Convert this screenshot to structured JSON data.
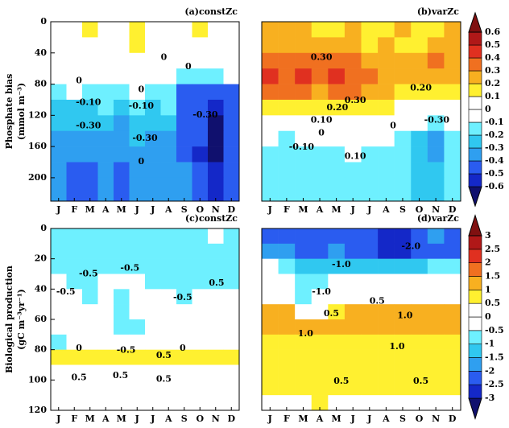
{
  "chart_data": [
    {
      "type": "heatmap",
      "title": "(a)constZc",
      "ylabel": "Phosphate bias",
      "ylabel_units": "(mmol m⁻³)",
      "categories": [
        "J",
        "F",
        "M",
        "A",
        "M",
        "J",
        "J",
        "A",
        "S",
        "O",
        "N",
        "D"
      ],
      "y_edges": [
        0,
        20,
        40,
        60,
        80,
        100,
        120,
        140,
        160,
        180,
        200,
        230
      ],
      "ylim": [
        0,
        230
      ],
      "y_inverted": true,
      "yticks": [
        0,
        40,
        80,
        120,
        160,
        200
      ],
      "values": [
        [
          0,
          0,
          0.15,
          0,
          0,
          0.15,
          0,
          0,
          0,
          0.15,
          0,
          0
        ],
        [
          0,
          0,
          0,
          0,
          0,
          0.15,
          0,
          0,
          0,
          0,
          0,
          0
        ],
        [
          0.05,
          0.05,
          0.05,
          0.05,
          0.05,
          0.05,
          0,
          0,
          0,
          0,
          0,
          0
        ],
        [
          0,
          0,
          0,
          0,
          0,
          0,
          0,
          0,
          -0.15,
          -0.15,
          -0.15,
          0
        ],
        [
          -0.15,
          -0.05,
          -0.15,
          -0.15,
          -0.15,
          -0.05,
          -0.15,
          -0.15,
          -0.45,
          -0.45,
          -0.45,
          -0.45
        ],
        [
          -0.25,
          -0.25,
          -0.25,
          -0.15,
          -0.25,
          -0.15,
          -0.25,
          -0.15,
          -0.45,
          -0.45,
          -0.55,
          -0.45
        ],
        [
          -0.25,
          -0.25,
          -0.25,
          -0.25,
          -0.35,
          -0.25,
          -0.25,
          -0.25,
          -0.45,
          -0.45,
          -0.65,
          -0.45
        ],
        [
          -0.35,
          -0.35,
          -0.35,
          -0.35,
          -0.35,
          -0.25,
          -0.35,
          -0.35,
          -0.45,
          -0.45,
          -0.65,
          -0.45
        ],
        [
          -0.35,
          -0.35,
          -0.35,
          -0.35,
          -0.35,
          -0.35,
          -0.35,
          -0.35,
          -0.45,
          -0.55,
          -0.65,
          -0.45
        ],
        [
          -0.35,
          -0.45,
          -0.45,
          -0.35,
          -0.45,
          -0.35,
          -0.35,
          -0.35,
          -0.35,
          -0.45,
          -0.55,
          -0.45
        ],
        [
          -0.35,
          -0.45,
          -0.45,
          -0.35,
          -0.45,
          -0.35,
          -0.35,
          -0.35,
          -0.35,
          -0.45,
          -0.55,
          -0.45
        ]
      ],
      "contour_labels": [
        "0",
        "0",
        "0",
        "0",
        "-0.10",
        "-0.10",
        "-0.30",
        "-0.30",
        "-0.30",
        "0"
      ]
    },
    {
      "type": "heatmap",
      "title": "(b)varZc",
      "categories": [
        "J",
        "F",
        "M",
        "A",
        "M",
        "J",
        "J",
        "A",
        "S",
        "O",
        "N",
        "D"
      ],
      "y_edges": [
        0,
        20,
        40,
        60,
        80,
        100,
        120,
        140,
        160,
        180,
        200,
        230
      ],
      "ylim": [
        0,
        230
      ],
      "y_inverted": true,
      "values": [
        [
          0.25,
          0.25,
          0.25,
          0.15,
          0.15,
          0.25,
          0.15,
          0.15,
          0.25,
          0.15,
          0.15,
          0.25
        ],
        [
          0.25,
          0.25,
          0.25,
          0.25,
          0.25,
          0.25,
          0.15,
          0.25,
          0.15,
          0.15,
          0.25,
          0.25
        ],
        [
          0.35,
          0.35,
          0.35,
          0.35,
          0.35,
          0.35,
          0.25,
          0.25,
          0.25,
          0.25,
          0.35,
          0.25
        ],
        [
          0.45,
          0.35,
          0.45,
          0.35,
          0.45,
          0.35,
          0.35,
          0.25,
          0.25,
          0.25,
          0.25,
          0.25
        ],
        [
          0.35,
          0.35,
          0.35,
          0.25,
          0.35,
          0.35,
          0.25,
          0.25,
          0.15,
          0.15,
          0.15,
          0.15
        ],
        [
          0.15,
          0.15,
          0.15,
          0.15,
          0.15,
          0.15,
          0.15,
          0.15,
          0.05,
          0.05,
          0.05,
          0.05
        ],
        [
          0.05,
          0.05,
          0.05,
          0.05,
          0.05,
          0.05,
          0.05,
          0.05,
          0.05,
          -0.05,
          -0.15,
          -0.05
        ],
        [
          -0.05,
          -0.15,
          -0.05,
          -0.05,
          -0.05,
          -0.05,
          -0.05,
          -0.05,
          -0.15,
          -0.25,
          -0.35,
          -0.15
        ],
        [
          -0.15,
          -0.15,
          -0.15,
          -0.15,
          -0.15,
          -0.05,
          -0.15,
          -0.15,
          -0.15,
          -0.25,
          -0.35,
          -0.15
        ],
        [
          -0.15,
          -0.15,
          -0.15,
          -0.15,
          -0.15,
          -0.15,
          -0.15,
          -0.15,
          -0.15,
          -0.25,
          -0.25,
          -0.15
        ],
        [
          -0.15,
          -0.15,
          -0.15,
          -0.15,
          -0.15,
          -0.15,
          -0.15,
          -0.15,
          -0.15,
          -0.25,
          -0.25,
          -0.15
        ]
      ],
      "contour_labels": [
        "0.30",
        "0.20",
        "0.20",
        "0.10",
        "0",
        "-0.10",
        "0.30",
        "0.10",
        "-0.30",
        "0"
      ],
      "colorbar": {
        "levels": [
          -0.6,
          -0.5,
          -0.4,
          -0.3,
          -0.2,
          -0.1,
          0,
          0.1,
          0.2,
          0.3,
          0.4,
          0.5,
          0.6
        ],
        "colors": [
          "#10106e",
          "#1428c8",
          "#2a5cf0",
          "#2f9ff0",
          "#30c8f0",
          "#6ef0ff",
          "#ffffff",
          "#ffffff",
          "#fff030",
          "#f8b020",
          "#f07020",
          "#e03020",
          "#b01818",
          "#801010"
        ]
      }
    },
    {
      "type": "heatmap",
      "title": "(c)constZc",
      "ylabel": "Biological production",
      "ylabel_units": "(gC m⁻³yr⁻¹)",
      "categories": [
        "J",
        "F",
        "M",
        "A",
        "M",
        "J",
        "J",
        "A",
        "S",
        "O",
        "N",
        "D"
      ],
      "y_edges": [
        0,
        10,
        20,
        30,
        40,
        50,
        60,
        70,
        80,
        90,
        100,
        110,
        120
      ],
      "ylim": [
        0,
        120
      ],
      "y_inverted": true,
      "yticks": [
        0,
        20,
        40,
        60,
        80,
        100,
        120
      ],
      "values": [
        [
          -0.75,
          -0.75,
          -0.75,
          -0.75,
          -0.75,
          -0.75,
          -0.75,
          -0.75,
          -0.75,
          -0.75,
          0.25,
          -0.75
        ],
        [
          -0.75,
          -0.75,
          -0.75,
          -0.75,
          -0.75,
          -0.75,
          -0.75,
          -0.75,
          -0.75,
          -0.75,
          -0.75,
          -0.75
        ],
        [
          -0.75,
          -0.75,
          -0.75,
          -0.75,
          -0.75,
          -0.75,
          -0.75,
          -0.75,
          -0.75,
          -0.75,
          -0.75,
          -0.75
        ],
        [
          -0.25,
          -0.75,
          -0.75,
          -0.25,
          -0.25,
          -0.25,
          -0.75,
          -0.75,
          -0.75,
          -0.75,
          -0.75,
          -0.75
        ],
        [
          -0.25,
          -0.25,
          -0.75,
          -0.25,
          -0.75,
          -0.25,
          -0.25,
          -0.25,
          -0.75,
          -0.25,
          -0.25,
          -0.25
        ],
        [
          -0.25,
          -0.25,
          -0.25,
          -0.25,
          -0.75,
          -0.25,
          -0.25,
          -0.25,
          -0.25,
          -0.25,
          -0.25,
          -0.25
        ],
        [
          -0.25,
          -0.25,
          -0.25,
          -0.25,
          -0.75,
          -0.75,
          -0.25,
          -0.25,
          -0.25,
          -0.25,
          -0.25,
          -0.25
        ],
        [
          -0.75,
          -0.25,
          -0.25,
          -0.25,
          -0.25,
          -0.25,
          -0.25,
          -0.25,
          -0.25,
          -0.25,
          -0.25,
          -0.25
        ],
        [
          0.75,
          0.75,
          0.75,
          0.75,
          0.75,
          0.75,
          0.75,
          0.75,
          0.75,
          0.75,
          0.75,
          0.75
        ],
        [
          0.25,
          0.25,
          0.25,
          0.25,
          0.25,
          0.25,
          0.25,
          0.25,
          0.25,
          0.25,
          0.25,
          0.25
        ],
        [
          0.25,
          0.25,
          0.25,
          0.25,
          0.25,
          0.25,
          0.25,
          0.25,
          0.25,
          0.25,
          0.25,
          0.25
        ],
        [
          0.25,
          0.25,
          0.25,
          0.25,
          0.25,
          0.25,
          0.25,
          0.25,
          0.25,
          0.25,
          0.25,
          0.25
        ]
      ],
      "contour_labels": [
        "-0.5",
        "-0.5",
        "-0.5",
        "-0.5",
        "0.5",
        "0",
        "0",
        "-0.5",
        "0.5",
        "0.5",
        "0.5",
        "0.5"
      ]
    },
    {
      "type": "heatmap",
      "title": "(d)varZc",
      "categories": [
        "J",
        "F",
        "M",
        "A",
        "M",
        "J",
        "J",
        "A",
        "S",
        "O",
        "N",
        "D"
      ],
      "y_edges": [
        0,
        10,
        20,
        30,
        40,
        50,
        60,
        70,
        80,
        90,
        100,
        110,
        120
      ],
      "ylim": [
        0,
        120
      ],
      "y_inverted": true,
      "values": [
        [
          -2.25,
          -2.25,
          -2.25,
          -2.25,
          -2.25,
          -2.25,
          -2.25,
          -2.75,
          -2.75,
          -2.25,
          -1.75,
          -2.25
        ],
        [
          -1.75,
          -1.75,
          -2.25,
          -2.25,
          -1.75,
          -2.25,
          -2.25,
          -2.75,
          -2.75,
          -2.25,
          -2.25,
          -2.25
        ],
        [
          -0.25,
          -0.75,
          -1.25,
          -1.25,
          -1.25,
          -1.25,
          -1.25,
          -1.25,
          -1.25,
          -1.25,
          -0.75,
          -0.75
        ],
        [
          -0.25,
          -0.25,
          -0.75,
          -0.75,
          -0.25,
          -0.25,
          -0.25,
          -0.25,
          -0.25,
          -0.25,
          -0.25,
          -0.25
        ],
        [
          0.25,
          -0.25,
          -0.75,
          -0.25,
          -0.25,
          -0.25,
          0.25,
          0.25,
          0.25,
          0.25,
          0.25,
          0.25
        ],
        [
          1.25,
          1.25,
          0.25,
          0.25,
          0.75,
          1.25,
          1.25,
          1.25,
          1.25,
          1.25,
          1.25,
          1.25
        ],
        [
          1.25,
          1.25,
          1.25,
          1.25,
          1.25,
          1.25,
          1.25,
          1.25,
          1.25,
          1.25,
          1.25,
          1.25
        ],
        [
          0.75,
          0.75,
          0.75,
          0.75,
          0.75,
          0.75,
          0.75,
          0.75,
          0.75,
          0.75,
          0.75,
          0.75
        ],
        [
          0.75,
          0.75,
          0.75,
          0.75,
          0.75,
          0.75,
          0.75,
          0.75,
          0.75,
          0.75,
          0.75,
          0.75
        ],
        [
          0.75,
          0.75,
          0.75,
          0.75,
          0.75,
          0.75,
          0.75,
          0.75,
          0.75,
          0.75,
          0.75,
          0.75
        ],
        [
          0.75,
          0.75,
          0.75,
          0.75,
          0.75,
          0.75,
          0.75,
          0.75,
          0.75,
          0.75,
          0.75,
          0.75
        ],
        [
          0.25,
          0.25,
          0.25,
          0.75,
          0.25,
          0.25,
          0.25,
          0.25,
          0.25,
          0.25,
          0.25,
          0.25
        ]
      ],
      "contour_labels": [
        "-1.0",
        "-2.0",
        "-1.0",
        "0.5",
        "0.5",
        "1.0",
        "1.0",
        "1.0",
        "0.5",
        "0.5"
      ],
      "colorbar": {
        "levels": [
          -3,
          -2.5,
          -2,
          -1.5,
          -1,
          -0.5,
          0,
          0.5,
          1,
          1.5,
          2,
          2.5,
          3
        ],
        "colors": [
          "#10106e",
          "#1428c8",
          "#2a5cf0",
          "#2f9ff0",
          "#30c8f0",
          "#6ef0ff",
          "#ffffff",
          "#ffffff",
          "#fff030",
          "#f8b020",
          "#f07020",
          "#e03020",
          "#b01818",
          "#801010"
        ]
      }
    }
  ]
}
